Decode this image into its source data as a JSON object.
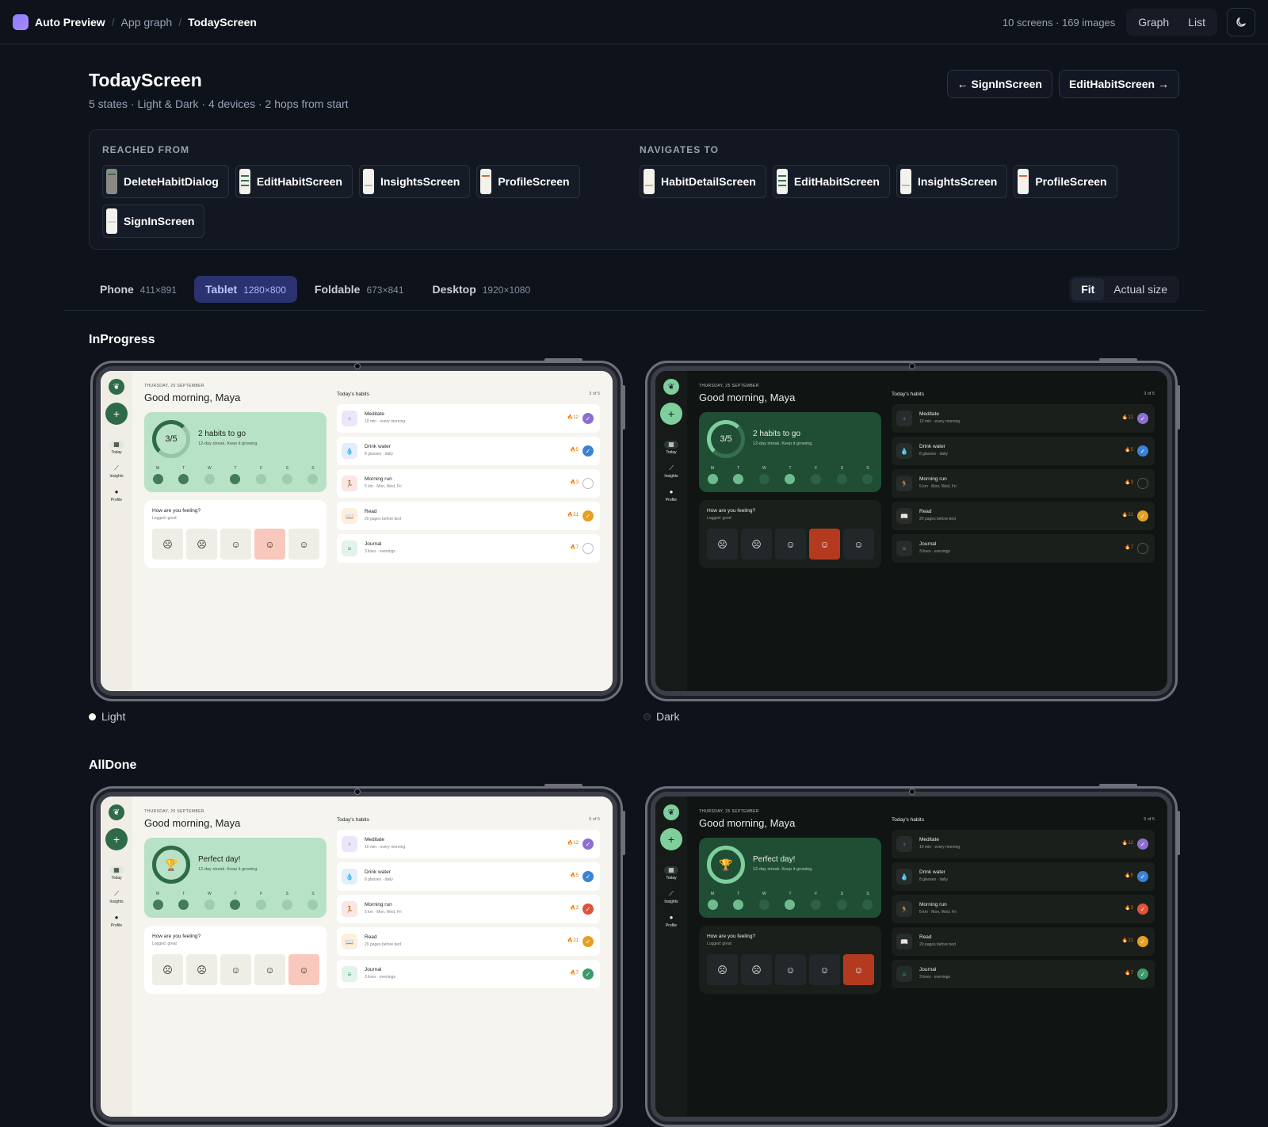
{
  "topbar": {
    "brand": "Auto Preview",
    "crumbs": [
      "App graph",
      "TodayScreen"
    ],
    "stats": "10 screens · 169 images",
    "views": [
      "Graph",
      "List"
    ]
  },
  "header": {
    "title": "TodayScreen",
    "subtitle": "5 states · Light & Dark · 4 devices · 2 hops from start",
    "prev": "← SignInScreen",
    "next": "EditHabitScreen →"
  },
  "reached_from": {
    "label": "REACHED FROM",
    "items": [
      "DeleteHabitDialog",
      "EditHabitScreen",
      "InsightsScreen",
      "ProfileScreen",
      "SignInScreen"
    ]
  },
  "navigates_to": {
    "label": "NAVIGATES TO",
    "items": [
      "HabitDetailScreen",
      "EditHabitScreen",
      "InsightsScreen",
      "ProfileScreen"
    ]
  },
  "devices": [
    {
      "name": "Phone",
      "size": "411×891"
    },
    {
      "name": "Tablet",
      "size": "1280×800"
    },
    {
      "name": "Foldable",
      "size": "673×841"
    },
    {
      "name": "Desktop",
      "size": "1920×1080"
    }
  ],
  "size_modes": [
    "Fit",
    "Actual size"
  ],
  "sections": [
    {
      "title": "InProgress",
      "light_label": "Light",
      "dark_label": "Dark"
    },
    {
      "title": "AllDone"
    }
  ],
  "app": {
    "date": "THURSDAY, 25 SEPTEMBER",
    "greeting": "Good morning, Maya",
    "nav": [
      "Today",
      "Insights",
      "Profile"
    ],
    "week_days": [
      "M",
      "T",
      "W",
      "T",
      "F",
      "S",
      "S"
    ],
    "mood_question": "How are you feeling?",
    "habits_heading": "Today's habits",
    "habits": [
      {
        "name": "Meditate",
        "desc": "10 min · every morning",
        "streak": "🔥12",
        "icon": "lotus-icon",
        "glyph": "♆",
        "color": "#8c6fd1",
        "bg": "#ece6f8"
      },
      {
        "name": "Drink water",
        "desc": "8 glasses · daily",
        "streak": "🔥5",
        "icon": "water-drop-icon",
        "glyph": "💧",
        "color": "#3b82d6",
        "bg": "#e3eefb"
      },
      {
        "name": "Morning run",
        "desc": "5 km · Mon, Wed, Fri",
        "streak": "🔥3",
        "icon": "run-icon",
        "glyph": "🏃",
        "color": "#e0533a",
        "bg": "#fbe6e1"
      },
      {
        "name": "Read",
        "desc": "20 pages before bed",
        "streak": "🔥21",
        "icon": "book-icon",
        "glyph": "📖",
        "color": "#e6a023",
        "bg": "#fbf0dc"
      },
      {
        "name": "Journal",
        "desc": "3 lines · evenings",
        "streak": "🔥7",
        "icon": "journal-icon",
        "glyph": "≡",
        "color": "#3d9a6a",
        "bg": "#e2f3e9"
      }
    ],
    "in_progress": {
      "ring": "3/5",
      "title": "2 habits to go",
      "sub": "12-day streak. Keep it growing.",
      "mood_logged": "Logged: good",
      "count": "3 of 5",
      "done": [
        true,
        true,
        false,
        true,
        false
      ]
    },
    "all_done": {
      "title": "Perfect day!",
      "sub": "12-day streak. Keep it growing.",
      "mood_logged": "Logged: great",
      "count": "5 of 5",
      "done": [
        true,
        true,
        true,
        true,
        true
      ]
    }
  }
}
